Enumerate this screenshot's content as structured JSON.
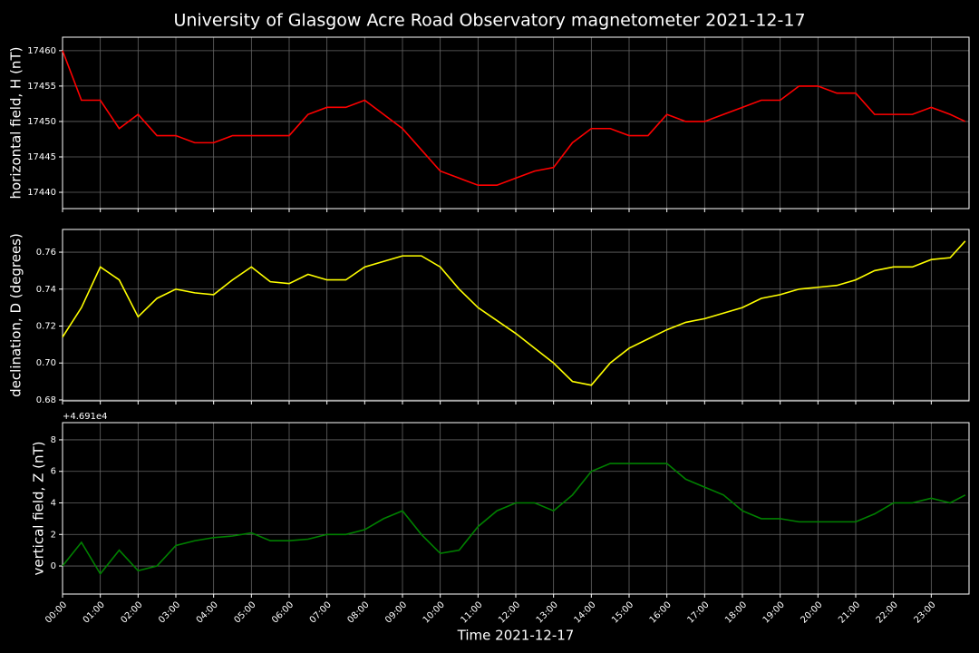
{
  "title": "University of Glasgow Acre Road Observatory magnetometer 2021-12-17",
  "chart_data": [
    {
      "type": "line",
      "ylabel": "horizontal field, H (nT)",
      "color": "#ff0000",
      "grid": true,
      "x": [
        0,
        0.5,
        1,
        1.5,
        2,
        2.5,
        3,
        3.5,
        4,
        4.5,
        5,
        5.5,
        6,
        6.5,
        7,
        7.5,
        8,
        8.5,
        9,
        9.5,
        10,
        10.5,
        11,
        11.5,
        12,
        12.5,
        13,
        13.5,
        14,
        14.5,
        15,
        15.5,
        16,
        16.5,
        17,
        17.5,
        18,
        18.5,
        19,
        19.5,
        20,
        20.5,
        21,
        21.5,
        22,
        22.5,
        23,
        23.5,
        23.9
      ],
      "values": [
        17460,
        17453,
        17453,
        17449,
        17451,
        17448,
        17448,
        17447,
        17447,
        17448,
        17448,
        17448,
        17448,
        17451,
        17452,
        17452,
        17453,
        17451,
        17449,
        17446,
        17443,
        17442,
        17441,
        17441,
        17442,
        17443,
        17443.5,
        17447,
        17449,
        17449,
        17448,
        17448,
        17451,
        17450,
        17450,
        17451,
        17452,
        17453,
        17453,
        17455,
        17455,
        17454,
        17454,
        17451,
        17451,
        17451,
        17452,
        17451,
        17450
      ],
      "xlim": [
        0,
        24
      ],
      "ylim": [
        17437.7,
        17461.9
      ],
      "yticks": [
        17440,
        17445,
        17450,
        17455,
        17460
      ]
    },
    {
      "type": "line",
      "ylabel": "declination, D (degrees)",
      "color": "#ffff00",
      "grid": true,
      "x": [
        0,
        0.5,
        1,
        1.5,
        2,
        2.5,
        3,
        3.5,
        4,
        4.5,
        5,
        5.5,
        6,
        6.5,
        7,
        7.5,
        8,
        8.5,
        9,
        9.5,
        10,
        10.5,
        11,
        11.5,
        12,
        12.5,
        13,
        13.5,
        14,
        14.5,
        15,
        15.5,
        16,
        16.5,
        17,
        17.5,
        18,
        18.5,
        19,
        19.5,
        20,
        20.5,
        21,
        21.5,
        22,
        22.5,
        23,
        23.5,
        23.9
      ],
      "values": [
        0.714,
        0.73,
        0.752,
        0.745,
        0.725,
        0.735,
        0.74,
        0.738,
        0.737,
        0.745,
        0.752,
        0.744,
        0.743,
        0.748,
        0.745,
        0.745,
        0.752,
        0.755,
        0.758,
        0.758,
        0.752,
        0.74,
        0.73,
        0.723,
        0.716,
        0.708,
        0.7,
        0.69,
        0.688,
        0.7,
        0.708,
        0.713,
        0.718,
        0.722,
        0.724,
        0.727,
        0.73,
        0.735,
        0.737,
        0.74,
        0.741,
        0.742,
        0.745,
        0.75,
        0.752,
        0.752,
        0.756,
        0.757,
        0.766
      ],
      "xlim": [
        0,
        24
      ],
      "ylim": [
        0.6795,
        0.7723
      ],
      "yticks": [
        0.68,
        {
          "value": 0.7,
          "label": "0.70"
        },
        0.72,
        0.74,
        0.76
      ]
    },
    {
      "type": "line",
      "ylabel": "vertical field, Z (nT)",
      "xlabel": "Time 2021-12-17",
      "offset_text": "+4.691e4",
      "color": "#008000",
      "grid": true,
      "x": [
        0,
        0.5,
        1,
        1.5,
        2,
        2.5,
        3,
        3.5,
        4,
        4.5,
        5,
        5.5,
        6,
        6.5,
        7,
        7.5,
        8,
        8.5,
        9,
        9.5,
        10,
        10.5,
        11,
        11.5,
        12,
        12.5,
        13,
        13.5,
        14,
        14.5,
        15,
        15.5,
        16,
        16.5,
        17,
        17.5,
        18,
        18.5,
        19,
        19.5,
        20,
        20.5,
        21,
        21.5,
        22,
        22.5,
        23,
        23.5,
        23.9
      ],
      "values": [
        0,
        1.5,
        -0.5,
        1,
        -0.3,
        0,
        1.3,
        1.6,
        1.8,
        1.9,
        2.1,
        1.6,
        1.6,
        1.7,
        2,
        2,
        2.3,
        3,
        3.5,
        2,
        0.8,
        1,
        2.5,
        3.5,
        4,
        4,
        3.5,
        4.5,
        6,
        6.5,
        6.5,
        6.5,
        6.5,
        5.5,
        5,
        4.5,
        3.5,
        3,
        3,
        2.8,
        2.8,
        2.8,
        2.8,
        3.3,
        4,
        4,
        4.3,
        4,
        4.5
      ],
      "xlim": [
        0,
        24
      ],
      "ylim": [
        -1.78,
        9.09
      ],
      "yticks": [
        0,
        2,
        4,
        6,
        8
      ],
      "xticks": [
        {
          "value": 0,
          "label": "00:00"
        },
        {
          "value": 1,
          "label": "01:00"
        },
        {
          "value": 2,
          "label": "02:00"
        },
        {
          "value": 3,
          "label": "03:00"
        },
        {
          "value": 4,
          "label": "04:00"
        },
        {
          "value": 5,
          "label": "05:00"
        },
        {
          "value": 6,
          "label": "06:00"
        },
        {
          "value": 7,
          "label": "07:00"
        },
        {
          "value": 8,
          "label": "08:00"
        },
        {
          "value": 9,
          "label": "09:00"
        },
        {
          "value": 10,
          "label": "10:00"
        },
        {
          "value": 11,
          "label": "11:00"
        },
        {
          "value": 12,
          "label": "12:00"
        },
        {
          "value": 13,
          "label": "13:00"
        },
        {
          "value": 14,
          "label": "14:00"
        },
        {
          "value": 15,
          "label": "15:00"
        },
        {
          "value": 16,
          "label": "16:00"
        },
        {
          "value": 17,
          "label": "17:00"
        },
        {
          "value": 18,
          "label": "18:00"
        },
        {
          "value": 19,
          "label": "19:00"
        },
        {
          "value": 20,
          "label": "20:00"
        },
        {
          "value": 21,
          "label": "21:00"
        },
        {
          "value": 22,
          "label": "22:00"
        },
        {
          "value": 23,
          "label": "23:00"
        }
      ]
    }
  ]
}
